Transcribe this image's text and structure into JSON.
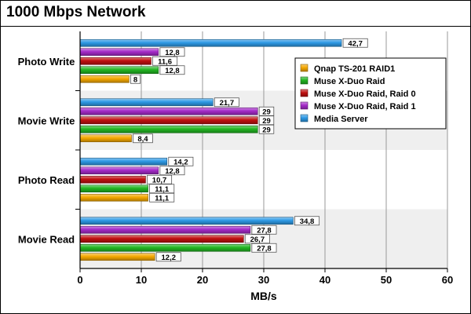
{
  "chart_data": {
    "type": "bar",
    "orientation": "horizontal",
    "title": "1000 Mbps Network",
    "xlabel": "MB/s",
    "xlim": [
      0,
      60
    ],
    "xticks": [
      "0",
      "10",
      "20",
      "30",
      "40",
      "50",
      "60"
    ],
    "grid": true,
    "legend_position": "right",
    "categories": [
      "Photo Write",
      "Movie Write",
      "Photo Read",
      "Movie Read"
    ],
    "series": [
      {
        "name": "Qnap TS-201 RAID1",
        "color": "#f5a800",
        "values": [
          8,
          8.4,
          11.1,
          12.2
        ],
        "labels": [
          "8",
          "8,4",
          "11,1",
          "12,2"
        ]
      },
      {
        "name": "Muse X-Duo Raid",
        "color": "#22b522",
        "values": [
          12.8,
          29,
          11.1,
          27.8
        ],
        "labels": [
          "12,8",
          "29",
          "11,1",
          "27,8"
        ]
      },
      {
        "name": "Muse X-Duo Raid, Raid 0",
        "color": "#c01010",
        "values": [
          11.6,
          29,
          10.7,
          26.7
        ],
        "labels": [
          "11,6",
          "29",
          "10,7",
          "26,7"
        ]
      },
      {
        "name": "Muse X-Duo Raid, Raid 1",
        "color": "#a52bc9",
        "values": [
          12.8,
          29,
          12.8,
          27.8
        ],
        "labels": [
          "12,8",
          "29",
          "12,8",
          "27,8"
        ]
      },
      {
        "name": "Media Server",
        "color": "#2e9ae6",
        "values": [
          42.7,
          21.7,
          14.2,
          34.8
        ],
        "labels": [
          "42,7",
          "21,7",
          "14,2",
          "34,8"
        ]
      }
    ]
  }
}
